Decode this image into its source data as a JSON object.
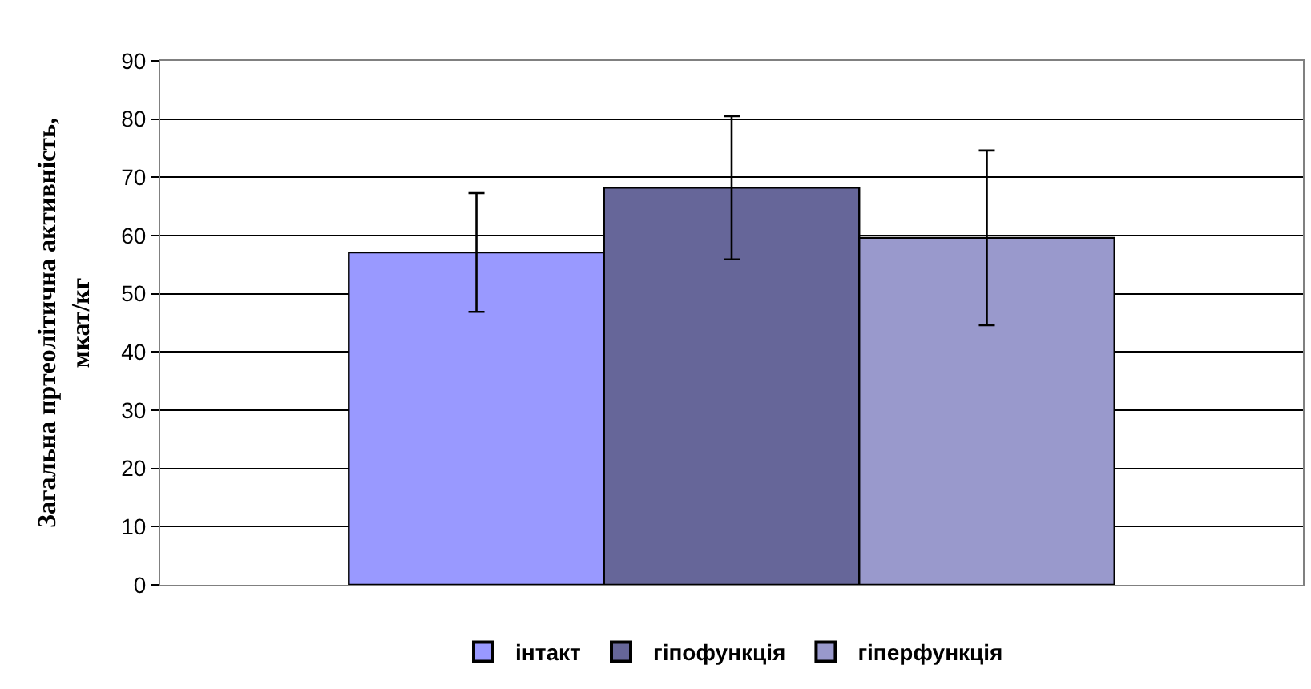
{
  "chart_data": {
    "type": "bar",
    "ylabel": "Загальна пртеолітична активність,\nмкат/кг",
    "categories": [
      null
    ],
    "series": [
      {
        "name": "інтакт",
        "color": "#9999ff",
        "values": [
          57.1
        ],
        "errors": [
          10.2
        ]
      },
      {
        "name": "гіпофункція",
        "color": "#666699",
        "values": [
          68.2
        ],
        "errors": [
          12.3
        ]
      },
      {
        "name": "гіперфункція",
        "color": "#9999cc",
        "values": [
          59.6
        ],
        "errors": [
          15
        ]
      }
    ],
    "ylim": [
      0,
      90
    ],
    "yticks": [
      0,
      10,
      20,
      30,
      40,
      50,
      60,
      70,
      80,
      90
    ],
    "grid": "y",
    "legend": "bottom"
  }
}
